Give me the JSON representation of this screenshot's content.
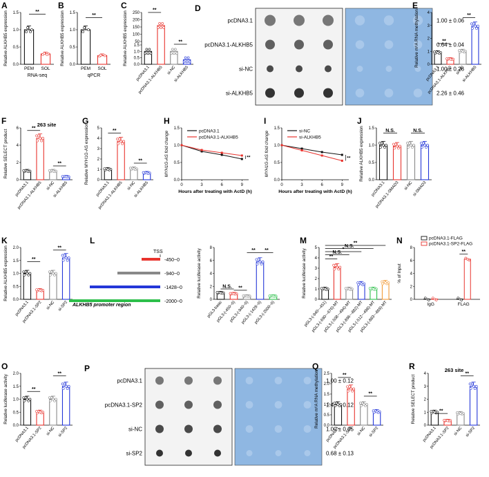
{
  "colors": {
    "black": "#111111",
    "red": "#e8332d",
    "blue": "#2336d8",
    "gray": "#888888",
    "green": "#2cbf4a",
    "orange": "#f29b38",
    "blot_bg": "#8fb7e2"
  },
  "sig": "**",
  "ns": "N.S.",
  "ns_star": "*",
  "A": {
    "label": "A",
    "ylabel": "Relative ALKHB5 expression",
    "xlabel": "RNA-seq",
    "categories": [
      "PEM",
      "SOL"
    ],
    "values": [
      1.0,
      0.3
    ],
    "ticks": [
      "0.0",
      "0.5",
      "1.0",
      "1.5"
    ],
    "ylim": [
      0,
      1.5
    ]
  },
  "B": {
    "label": "B",
    "ylabel": "Relative ALKHB5 expression",
    "xlabel": "qPCR",
    "categories": [
      "PEM",
      "SOL"
    ],
    "values": [
      1.0,
      0.25
    ],
    "ticks": [
      "0.0",
      "0.5",
      "1.0",
      "1.5"
    ],
    "ylim": [
      0,
      1.5
    ]
  },
  "C": {
    "label": "C",
    "ylabel": "Relative ALKHB5 expression",
    "categories": [
      "pcDNA3.1",
      "pcDNA3.1-ALKHB5",
      "si-NC",
      "si-ALKHB5"
    ],
    "values": [
      1.0,
      160,
      1.0,
      0.35
    ],
    "ticks_top": [
      "50",
      "100",
      "150",
      "200",
      "250"
    ],
    "ticks_bottom": [
      "0.0",
      "0.5",
      "1.0",
      "1.5"
    ]
  },
  "D": {
    "label": "D",
    "rows": [
      "pcDNA3.1",
      "pcDNA3.1-ALKHB5",
      "si-NC",
      "si-ALKHB5"
    ],
    "values": [
      "1.00 ± 0.06",
      "0.64 ± 0.04",
      "1.00 ± 0.26",
      "2.26 ± 0.46"
    ]
  },
  "E": {
    "label": "E",
    "ylabel": "Relative m⁶A RNA methylation",
    "categories": [
      "pcDNA3.1",
      "pcDNA3.1-ALKHB5",
      "si-NC",
      "si-ALKHB5"
    ],
    "values": [
      0.9,
      0.4,
      1.0,
      2.95
    ],
    "ticks": [
      "0",
      "1",
      "2",
      "3",
      "4"
    ],
    "ylim": [
      0,
      4
    ]
  },
  "F": {
    "label": "F",
    "title": "263 site",
    "ylabel": "Relative SELECT product",
    "categories": [
      "pcDNA3.1",
      "pcDNA3.1-ALKHB5",
      "si-NC",
      "si-ALKHB5"
    ],
    "values": [
      1.0,
      4.8,
      1.0,
      0.35
    ],
    "ticks": [
      "0",
      "2",
      "4",
      "6"
    ],
    "ylim": [
      0,
      6
    ]
  },
  "G": {
    "label": "G",
    "ylabel": "Relative MYH1G-AS expression",
    "categories": [
      "pcDNA3.1",
      "pcDNA3.1-ALKHB5",
      "si-NC",
      "si-ALKHB5"
    ],
    "values": [
      1.0,
      3.7,
      1.05,
      0.65
    ],
    "ticks": [
      "0",
      "1",
      "2",
      "3",
      "4",
      "5"
    ],
    "ylim": [
      0,
      5
    ]
  },
  "H": {
    "label": "H",
    "ylabel": "MYH1G-AS fold change",
    "xlabel": "Hours after treating with ActD (h)",
    "legend": [
      "pcDNA3.1",
      "pcDNA3.1-ALKHB5"
    ],
    "x": [
      0,
      3,
      6,
      9
    ],
    "series": [
      [
        1.0,
        0.82,
        0.72,
        0.6
      ],
      [
        1.0,
        0.86,
        0.78,
        0.7
      ]
    ],
    "xticks": [
      "0",
      "3",
      "6",
      "9"
    ],
    "ticks": [
      "0.0",
      "0.5",
      "1.0",
      "1.5"
    ],
    "ylim": [
      0,
      1.5
    ]
  },
  "I": {
    "label": "I",
    "ylabel": "MYH1G-AS fold change",
    "xlabel": "Hours after treating with ActD (h)",
    "legend": [
      "si-NC",
      "si-ALKHB5"
    ],
    "x": [
      0,
      3,
      6,
      9
    ],
    "series": [
      [
        1.0,
        0.9,
        0.8,
        0.72
      ],
      [
        1.0,
        0.85,
        0.7,
        0.55
      ]
    ],
    "xticks": [
      "0",
      "3",
      "6",
      "9"
    ],
    "ticks": [
      "0.0",
      "0.5",
      "1.0",
      "1.5"
    ],
    "ylim": [
      0,
      1.5
    ]
  },
  "J": {
    "label": "J",
    "ylabel": "Relative ALKHB5 expression",
    "categories": [
      "pcDNA3.1",
      "pcDNA3.1-SMAD3",
      "si-NC",
      "si-SMAD3"
    ],
    "values": [
      1.0,
      0.97,
      1.0,
      1.0
    ],
    "ticks": [
      "0.0",
      "0.5",
      "1.0",
      "1.5"
    ],
    "ylim": [
      0,
      1.5
    ]
  },
  "K": {
    "label": "K",
    "ylabel": "Relative ALKHB5 expression",
    "categories": [
      "pcDNA3.1",
      "pcDNA3.1-SP2",
      "si-NC",
      "si-SP2"
    ],
    "values": [
      1.0,
      0.35,
      1.0,
      1.6
    ],
    "ticks": [
      "0.0",
      "0.5",
      "1.0",
      "1.5",
      "2.0"
    ],
    "ylim": [
      0,
      2
    ]
  },
  "L": {
    "label": "L",
    "tss": "TSS",
    "constructs": [
      "-450~0",
      "-940~0",
      "-1428~0",
      "-2000~0"
    ],
    "region": "ALKHB5 promoter region",
    "ylabel": "Relative luciferase activity",
    "categories": [
      "pGL3-basic",
      "pGL3-(-450~0)",
      "pGL3-(-940~0)",
      "pGL3-(-1428~0)",
      "pGL3-(-2000~0)"
    ],
    "values": [
      1.0,
      0.85,
      0.5,
      5.8,
      0.5
    ],
    "ticks": [
      "0",
      "2",
      "4",
      "6",
      "8"
    ],
    "ylim": [
      0,
      8
    ]
  },
  "M": {
    "label": "M",
    "ylabel": "Relative luciferase activity",
    "categories": [
      "pGL3-(-940~-451)",
      "pGL3-(-690~-676)-MT",
      "pGL3-(-508~-494)-MT",
      "pGL3-(-896~-882)-MT",
      "pGL3-(-512~-498)-MT",
      "pGL3-(-883~-869)-MT"
    ],
    "values": [
      1.0,
      3.1,
      1.0,
      1.5,
      1.0,
      1.6
    ],
    "ticks": [
      "0",
      "1",
      "2",
      "3",
      "4",
      "5"
    ],
    "ylim": [
      0,
      5
    ]
  },
  "N": {
    "label": "N",
    "ylabel": "% of Input",
    "legend": [
      "pcDNA3.1-FLAG",
      "pcDNA3.1-SP2-FLAG"
    ],
    "categories": [
      "IgG",
      "FLAG"
    ],
    "series": [
      [
        0.05,
        0.05
      ],
      [
        0.05,
        6.2
      ]
    ],
    "ticks": [
      "0",
      "2",
      "4",
      "6",
      "8"
    ],
    "ylim": [
      0,
      8
    ]
  },
  "O": {
    "label": "O",
    "ylabel": "Relative luciferase activity",
    "categories": [
      "pcDNA3.1",
      "pcDNA3.1-SP2",
      "si-NC",
      "si-SP2"
    ],
    "values": [
      1.0,
      0.5,
      1.0,
      1.5
    ],
    "ticks": [
      "0.0",
      "0.5",
      "1.0",
      "1.5",
      "2.0"
    ],
    "ylim": [
      0,
      2
    ]
  },
  "P": {
    "label": "P",
    "rows": [
      "pcDNA3.1",
      "pcDNA3.1-SP2",
      "si-NC",
      "si-SP2"
    ],
    "values": [
      "1.00 ± 0.12",
      "1.43 ± 0.12",
      "1.00 ± 0.05",
      "0.68 ± 0.13"
    ]
  },
  "Q": {
    "label": "Q",
    "ylabel": "Relative m⁶A RNA methylation",
    "categories": [
      "pcDNA3.1",
      "pcDNA3.1-SP2",
      "si-NC",
      "si-SP2"
    ],
    "values": [
      1.0,
      1.75,
      1.0,
      0.65
    ],
    "ticks": [
      "0.0",
      "0.5",
      "1.0",
      "1.5",
      "2.0",
      "2.5"
    ],
    "ylim": [
      0,
      2.5
    ]
  },
  "R": {
    "label": "R",
    "title": "263 site",
    "ylabel": "Relative SELECT product",
    "categories": [
      "pcDNA3.1",
      "pcDNA3.1-SP2",
      "si-NC",
      "si-SP2"
    ],
    "values": [
      1.0,
      0.35,
      0.9,
      3.0
    ],
    "ticks": [
      "0",
      "1",
      "2",
      "3",
      "4"
    ],
    "ylim": [
      0,
      4
    ]
  }
}
